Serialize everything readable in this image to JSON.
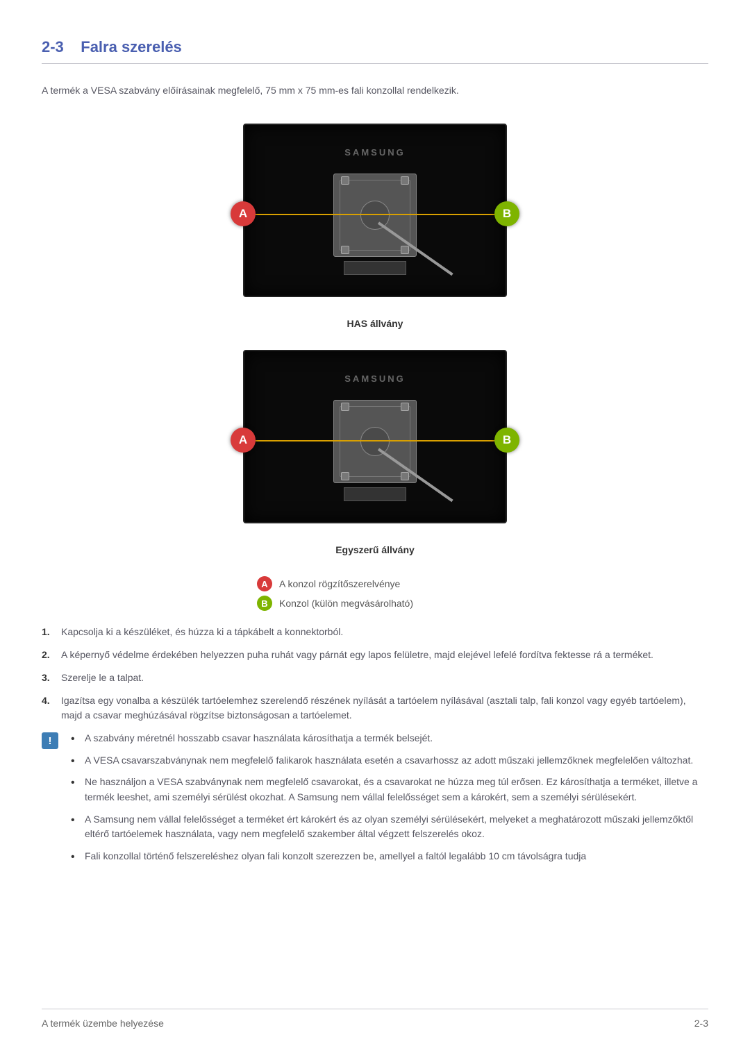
{
  "section": {
    "number": "2-3",
    "title": "Falra szerelés"
  },
  "intro": "A termék a VESA szabvány előírásainak megfelelő, 75 mm x 75 mm-es fali konzollal rendelkezik.",
  "figures": {
    "brand": "SAMSUNG",
    "labelA": "A",
    "labelB": "B",
    "caption1": "HAS állvány",
    "caption2": "Egyszerű állvány"
  },
  "legend": {
    "a": "A konzol rögzítőszerelvénye",
    "b": "Konzol (külön megvásárolható)"
  },
  "steps": [
    "Kapcsolja ki a készüléket, és húzza ki a tápkábelt a konnektorból.",
    "A képernyő védelme érdekében helyezzen puha ruhát vagy párnát egy lapos felületre, majd elejével lefelé fordítva fektesse rá a terméket.",
    "Szerelje le a talpat.",
    "Igazítsa egy vonalba a készülék tartóelemhez szerelendő részének nyílását a tartóelem nyílásával (asztali talp, fali konzol vagy egyéb tartóelem), majd a csavar meghúzásával rögzítse biztonságosan a tartóelemet."
  ],
  "notes": [
    "A szabvány méretnél hosszabb csavar használata károsíthatja a termék belsejét.",
    "A VESA csavarszabványnak nem megfelelő falikarok használata esetén a csavarhossz az adott műszaki jellemzőknek megfelelően változhat.",
    "Ne használjon a VESA szabványnak nem megfelelő csavarokat, és a csavarokat ne húzza meg túl erősen. Ez károsíthatja a terméket, illetve a termék leeshet, ami személyi sérülést okozhat. A Samsung nem vállal felelősséget sem a károkért, sem a személyi sérülésekért.",
    "A Samsung nem vállal felelősséget a terméket ért károkért és az olyan személyi sérülésekért, melyeket a meghatározott műszaki jellemzőktől eltérő tartóelemek használata, vagy nem megfelelő szakember által végzett felszerelés okoz.",
    "Fali konzollal történő felszereléshez olyan fali konzolt szerezzen be, amellyel a faltól legalább 10 cm távolságra tudja"
  ],
  "footer": {
    "left": "A termék üzembe helyezése",
    "right": "2-3"
  },
  "noteIconGlyph": "!",
  "colors": {
    "heading": "#4a5fb0",
    "labelA_bg": "#d83a3a",
    "labelB_bg": "#7eb400",
    "accent_line": "#d9a000",
    "note_icon_bg": "#3d7db5",
    "text": "#555560",
    "rule": "#c9c9d0",
    "background": "#ffffff"
  }
}
